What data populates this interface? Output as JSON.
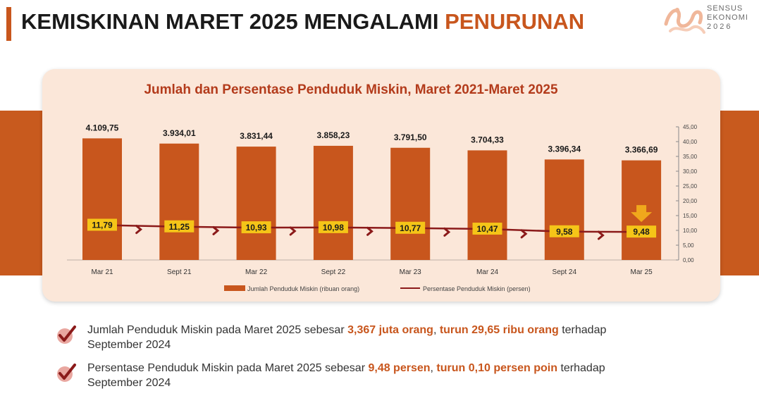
{
  "header": {
    "title_main": "KEMISKINAN MARET 2025 MENGALAMI ",
    "title_highlight": "PENURUNAN",
    "accent_color": "#c8561d"
  },
  "logo": {
    "line1": "SENSUS",
    "line2": "EKONOMI",
    "line3": "2026",
    "icon": "sensus-ekonomi-swirl-logo"
  },
  "chart_data": {
    "type": "bar",
    "title": "Jumlah dan Persentase Penduduk Miskin, Maret 2021-Maret 2025",
    "categories": [
      "Mar 21",
      "Sept 21",
      "Mar 22",
      "Sept 22",
      "Mar 23",
      "Mar 24",
      "Sept 24",
      "Mar 25"
    ],
    "series": [
      {
        "name": "Jumlah Penduduk Miskin (ribuan orang)",
        "type": "bar",
        "values": [
          4109.75,
          3934.01,
          3831.44,
          3858.23,
          3791.5,
          3704.33,
          3396.34,
          3366.69
        ],
        "labels": [
          "4.109,75",
          "3.934,01",
          "3.831,44",
          "3.858,23",
          "3.791,50",
          "3.704,33",
          "3.396,34",
          "3.366,69"
        ],
        "color": "#c8561d"
      },
      {
        "name": "Persentase Penduduk Miskin (persen)",
        "type": "line",
        "axis": "right",
        "values": [
          11.79,
          11.25,
          10.93,
          10.98,
          10.77,
          10.47,
          9.58,
          9.48
        ],
        "labels": [
          "11,79",
          "11,25",
          "10,93",
          "10,98",
          "10,77",
          "10,47",
          "9,58",
          "9,48"
        ],
        "color": "#8b1a1a",
        "label_bg": "#f5c518"
      }
    ],
    "y_left_range": [
      0,
      4500
    ],
    "y_right_range": [
      0,
      45
    ],
    "y_right_ticks": [
      "45,00",
      "40,00",
      "35,00",
      "30,00",
      "25,00",
      "20,00",
      "15,00",
      "10,00",
      "5,00",
      "0,00"
    ],
    "legend_position": "bottom",
    "annotation": "down-arrow on Mar 25"
  },
  "notes": [
    {
      "pre": "Jumlah Penduduk Miskin pada Maret 2025 sebesar ",
      "b1": "3,367 juta orang",
      "mid": ", ",
      "b2": "turun 29,65 ribu orang",
      "post": " terhadap\nSeptember 2024"
    },
    {
      "pre": "Persentase Penduduk Miskin pada Maret 2025 sebesar ",
      "b1": "9,48 persen",
      "mid": ", ",
      "b2": "turun 0,10 persen poin",
      "post": " terhadap\nSeptember 2024"
    }
  ]
}
